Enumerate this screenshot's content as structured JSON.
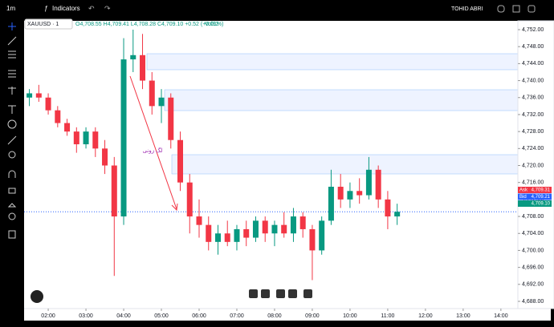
{
  "top_bar": {
    "interval": "1m",
    "indicators": "Indicators",
    "user": "TOHID ABRI"
  },
  "legend": {
    "symbol": "XAUUSD · 1",
    "ohlc": "O4,708.55 H4,709.41 L4,708.28 C4,709.10 +0.52 (+0.01%)",
    "volume": "Vol92"
  },
  "chart_data": {
    "type": "candlestick",
    "annotation": "لگ زونی",
    "x": [
      1.5,
      1.75,
      2,
      2.25,
      2.5,
      2.75,
      3,
      3.25,
      3.5,
      3.75,
      4,
      4.25,
      4.5,
      4.75,
      5,
      5.25,
      5.5,
      5.75,
      6,
      6.25,
      6.5,
      6.75,
      7,
      7.25,
      7.5,
      7.75,
      8,
      8.25,
      8.5,
      8.75,
      9,
      9.25,
      9.5,
      9.75,
      10,
      10.25,
      10.5,
      10.75,
      11,
      11.25
    ],
    "open": [
      4736,
      4737,
      4736,
      4733,
      4730,
      4728,
      4725,
      4728,
      4724,
      4720,
      4708,
      4745,
      4746,
      4740,
      4734,
      4736,
      4726,
      4716,
      4708,
      4706,
      4702,
      4704,
      4702,
      4705,
      4703,
      4707,
      4704,
      4706,
      4704,
      4708,
      4705,
      4700,
      4707,
      4715,
      4712,
      4714,
      4713,
      4719,
      4712,
      4708
    ],
    "high": [
      4738,
      4739,
      4737,
      4734,
      4731,
      4729,
      4729,
      4729,
      4726,
      4722,
      4750,
      4752,
      4751,
      4742,
      4738,
      4737,
      4728,
      4718,
      4712,
      4708,
      4706,
      4707,
      4706,
      4707,
      4708,
      4708,
      4707,
      4709,
      4710,
      4709,
      4706,
      4708,
      4719,
      4718,
      4716,
      4717,
      4722,
      4720,
      4714,
      4711
    ],
    "low": [
      4734,
      4735,
      4732,
      4729,
      4727,
      4723,
      4724,
      4722,
      4718,
      4694,
      4706,
      4742,
      4738,
      4732,
      4730,
      4724,
      4714,
      4704,
      4703,
      4700,
      4699,
      4701,
      4700,
      4701,
      4702,
      4702,
      4701,
      4703,
      4702,
      4703,
      4693,
      4699,
      4706,
      4710,
      4710,
      4711,
      4712,
      4710,
      4705,
      4706
    ],
    "close": [
      4737,
      4736,
      4733,
      4730,
      4728,
      4725,
      4728,
      4724,
      4720,
      4708,
      4745,
      4746,
      4740,
      4734,
      4736,
      4726,
      4716,
      4708,
      4706,
      4702,
      4704,
      4702,
      4705,
      4703,
      4707,
      4704,
      4706,
      4704,
      4708,
      4705,
      4700,
      4707,
      4715,
      4712,
      4714,
      4713,
      4719,
      4712,
      4708,
      4709.1
    ],
    "up_color": "#089981",
    "down_color": "#f23645",
    "xlim": [
      1.36,
      14.45
    ],
    "ylim": [
      4686.3,
      4753.7
    ],
    "xticks": [
      {
        "value": 2,
        "label": "02:00"
      },
      {
        "value": 3,
        "label": "03:00"
      },
      {
        "value": 4,
        "label": "04:00"
      },
      {
        "value": 5,
        "label": "05:00"
      },
      {
        "value": 6,
        "label": "06:00"
      },
      {
        "value": 7,
        "label": "07:00"
      },
      {
        "value": 8,
        "label": "08:00"
      },
      {
        "value": 9,
        "label": "09:00"
      },
      {
        "value": 10,
        "label": "10:00"
      },
      {
        "value": 11,
        "label": "11:00"
      },
      {
        "value": 12,
        "label": "12:00"
      },
      {
        "value": 13,
        "label": "13:00"
      },
      {
        "value": 14,
        "label": "14:00"
      }
    ],
    "yticks": [
      {
        "value": 4688,
        "label": "4,688.00"
      },
      {
        "value": 4692,
        "label": "4,692.00"
      },
      {
        "value": 4696,
        "label": "4,696.00"
      },
      {
        "value": 4700,
        "label": "4,700.00"
      },
      {
        "value": 4704,
        "label": "4,704.00"
      },
      {
        "value": 4708,
        "label": "4,708.00"
      },
      {
        "value": 4712,
        "label": "4,712.00"
      },
      {
        "value": 4716,
        "label": "4,716.00"
      },
      {
        "value": 4720,
        "label": "4,720.00"
      },
      {
        "value": 4724,
        "label": "4,724.00"
      },
      {
        "value": 4728,
        "label": "4,728.00"
      },
      {
        "value": 4732,
        "label": "4,732.00"
      },
      {
        "value": 4736,
        "label": "4,736.00"
      },
      {
        "value": 4740,
        "label": "4,740.00"
      },
      {
        "value": 4744,
        "label": "4,744.00"
      },
      {
        "value": 4748,
        "label": "4,748.00"
      },
      {
        "value": 4752,
        "label": "4,752.00"
      }
    ],
    "price_labels": [
      {
        "name": "Ask",
        "value": 4709.31,
        "label": "4,709.31",
        "color": "#f23645"
      },
      {
        "name": "Bid",
        "value": 4709.21,
        "label": "4,709.21",
        "color": "#2962ff"
      },
      {
        "value": 4709.1,
        "label": "4,709.10",
        "color": "#089981"
      }
    ]
  }
}
